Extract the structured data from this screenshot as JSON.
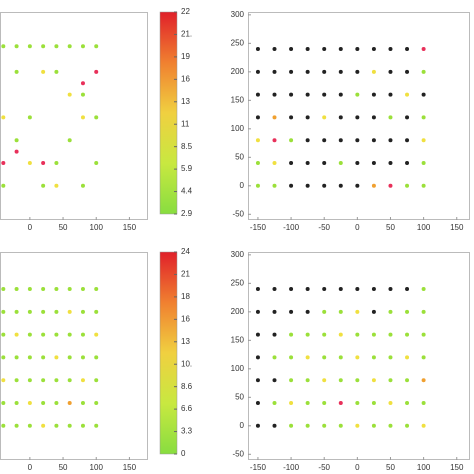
{
  "chart_data": [
    {
      "type": "scatter",
      "xlim": [
        -45,
        178
      ],
      "ylim": [
        -60,
        305
      ],
      "xticks": [
        0,
        50,
        100,
        150
      ],
      "colorbar": {
        "colors": [
          "#e0202a",
          "#f08030",
          "#f0d040",
          "#c8e840",
          "#88dd40"
        ],
        "labels": [
          "22",
          "21.",
          "19",
          "16",
          "13",
          "11",
          "8.5",
          "5.9",
          "4.4",
          "2.9"
        ]
      },
      "series": [
        {
          "color": "#9be03a",
          "x": [
            -40,
            -20,
            0,
            20,
            40,
            60,
            80,
            100,
            -20,
            40,
            80,
            0,
            60,
            100,
            -40,
            20,
            80,
            -20,
            40,
            100
          ],
          "y": [
            245,
            245,
            245,
            245,
            245,
            245,
            245,
            245,
            200,
            200,
            160,
            120,
            80,
            40,
            0,
            0,
            0,
            80,
            40,
            120
          ]
        },
        {
          "color": "#f0e040",
          "x": [
            20,
            60,
            -40,
            80,
            0,
            40
          ],
          "y": [
            200,
            160,
            120,
            120,
            40,
            0
          ]
        },
        {
          "color": "#e8305a",
          "x": [
            80,
            -40,
            -20,
            20,
            100
          ],
          "y": [
            180,
            40,
            60,
            40,
            200
          ]
        }
      ]
    },
    {
      "type": "scatter",
      "xlim": [
        -165,
        170
      ],
      "ylim": [
        -60,
        305
      ],
      "xticks": [
        -150,
        -100,
        -50,
        0,
        50,
        100,
        150
      ],
      "yticks": [
        -50,
        0,
        50,
        100,
        150,
        200,
        250,
        300
      ],
      "series": [
        {
          "color": "#222222",
          "x": [
            -100,
            -75,
            -50,
            -25,
            0,
            -100,
            -75,
            -50,
            0,
            25,
            50,
            75,
            -75,
            -50,
            -25,
            0,
            25,
            50,
            75,
            -150,
            -100,
            -75,
            -25,
            0,
            25,
            75,
            -150,
            -125,
            -100,
            -75,
            -50,
            -25,
            25,
            50,
            100,
            -150,
            -125,
            -100,
            -75,
            -50,
            -25,
            0,
            50,
            75,
            -150,
            -125,
            -100,
            -75,
            -50,
            -25,
            0,
            25,
            50,
            75
          ],
          "y": [
            0,
            0,
            0,
            0,
            0,
            40,
            40,
            40,
            40,
            40,
            40,
            40,
            80,
            80,
            80,
            80,
            80,
            80,
            80,
            120,
            120,
            120,
            120,
            120,
            120,
            120,
            160,
            160,
            160,
            160,
            160,
            160,
            160,
            160,
            160,
            200,
            200,
            200,
            200,
            200,
            200,
            200,
            200,
            200,
            240,
            240,
            240,
            240,
            240,
            240,
            240,
            240,
            240,
            240
          ]
        },
        {
          "color": "#9be03a",
          "x": [
            -150,
            -150,
            -125,
            75,
            100,
            100,
            -100,
            50,
            100,
            -25,
            0,
            100
          ],
          "y": [
            0,
            40,
            0,
            0,
            0,
            40,
            80,
            120,
            200,
            40,
            160,
            120
          ]
        },
        {
          "color": "#f0e040",
          "x": [
            -125,
            25,
            100,
            -50,
            75,
            -150
          ],
          "y": [
            40,
            200,
            80,
            120,
            160,
            80
          ]
        },
        {
          "color": "#f0a030",
          "x": [
            -125,
            25
          ],
          "y": [
            120,
            0
          ]
        },
        {
          "color": "#e8305a",
          "x": [
            -125,
            100,
            50
          ],
          "y": [
            80,
            240,
            0
          ]
        }
      ]
    },
    {
      "type": "scatter",
      "xlim": [
        -45,
        178
      ],
      "ylim": [
        -60,
        305
      ],
      "xticks": [
        0,
        50,
        100,
        150
      ],
      "colorbar": {
        "colors": [
          "#e0202a",
          "#f08030",
          "#f0d040",
          "#c8e840",
          "#88dd40"
        ],
        "labels": [
          "24",
          "21",
          "18",
          "16",
          "13",
          "10.",
          "8.6",
          "6.6",
          "3.3",
          "0"
        ]
      },
      "series": [
        {
          "color": "#9be03a",
          "x": [
            -40,
            -20,
            0,
            40,
            60,
            80,
            100,
            -40,
            -20,
            20,
            40,
            80,
            100,
            -20,
            0,
            20,
            40,
            60,
            100,
            -40,
            -20,
            0,
            20,
            60,
            80,
            100,
            -40,
            0,
            20,
            40,
            60,
            80,
            -40,
            -20,
            0,
            20,
            40,
            80,
            100,
            -40,
            -20,
            0,
            20,
            40,
            60,
            80,
            100
          ],
          "y": [
            0,
            0,
            0,
            0,
            0,
            0,
            0,
            40,
            40,
            40,
            40,
            40,
            40,
            80,
            80,
            80,
            80,
            80,
            80,
            120,
            120,
            120,
            120,
            120,
            120,
            120,
            160,
            160,
            160,
            160,
            160,
            160,
            200,
            200,
            200,
            200,
            200,
            200,
            200,
            240,
            240,
            240,
            240,
            240,
            240,
            240,
            240
          ]
        },
        {
          "color": "#f0e040",
          "x": [
            -20,
            40,
            80,
            0,
            60,
            -40,
            100,
            20
          ],
          "y": [
            160,
            120,
            80,
            40,
            200,
            80,
            160,
            0
          ]
        },
        {
          "color": "#f0a030",
          "x": [
            60
          ],
          "y": [
            40
          ]
        }
      ]
    },
    {
      "type": "scatter",
      "xlim": [
        -165,
        170
      ],
      "ylim": [
        -60,
        305
      ],
      "xticks": [
        -150,
        -100,
        -50,
        0,
        50,
        100,
        150
      ],
      "yticks": [
        -50,
        0,
        50,
        100,
        150,
        200,
        250,
        300
      ],
      "series": [
        {
          "color": "#222222",
          "x": [
            -150,
            -125,
            -150,
            -150,
            -125,
            -150,
            -150,
            -125,
            -150,
            -125,
            -100,
            -75,
            25,
            -150,
            -125,
            -100,
            -75,
            -50,
            -25,
            0,
            25,
            50,
            75
          ],
          "y": [
            0,
            0,
            40,
            80,
            80,
            120,
            160,
            160,
            200,
            200,
            200,
            200,
            200,
            240,
            240,
            240,
            240,
            240,
            240,
            240,
            240,
            240,
            240
          ]
        },
        {
          "color": "#9be03a",
          "x": [
            -100,
            -75,
            -50,
            -25,
            25,
            50,
            75,
            -125,
            -75,
            -50,
            0,
            25,
            75,
            100,
            -100,
            -75,
            -25,
            0,
            50,
            75,
            -125,
            -100,
            -50,
            -25,
            25,
            50,
            100,
            -100,
            -75,
            -50,
            0,
            25,
            50,
            75,
            100,
            -50,
            -25,
            50,
            75,
            100,
            100
          ],
          "y": [
            0,
            0,
            0,
            0,
            0,
            0,
            0,
            40,
            40,
            40,
            40,
            40,
            40,
            40,
            80,
            80,
            80,
            80,
            80,
            80,
            120,
            120,
            120,
            120,
            120,
            120,
            120,
            160,
            160,
            160,
            160,
            160,
            160,
            160,
            160,
            200,
            200,
            200,
            200,
            200,
            240
          ]
        },
        {
          "color": "#f0e040",
          "x": [
            0,
            100,
            -100,
            50,
            -50,
            25,
            -75,
            0,
            75,
            -25,
            0
          ],
          "y": [
            0,
            0,
            40,
            40,
            80,
            80,
            120,
            120,
            120,
            160,
            200
          ]
        },
        {
          "color": "#e8305a",
          "x": [
            -25
          ],
          "y": [
            40
          ]
        },
        {
          "color": "#f0a030",
          "x": [
            100
          ],
          "y": [
            80
          ]
        }
      ]
    }
  ]
}
